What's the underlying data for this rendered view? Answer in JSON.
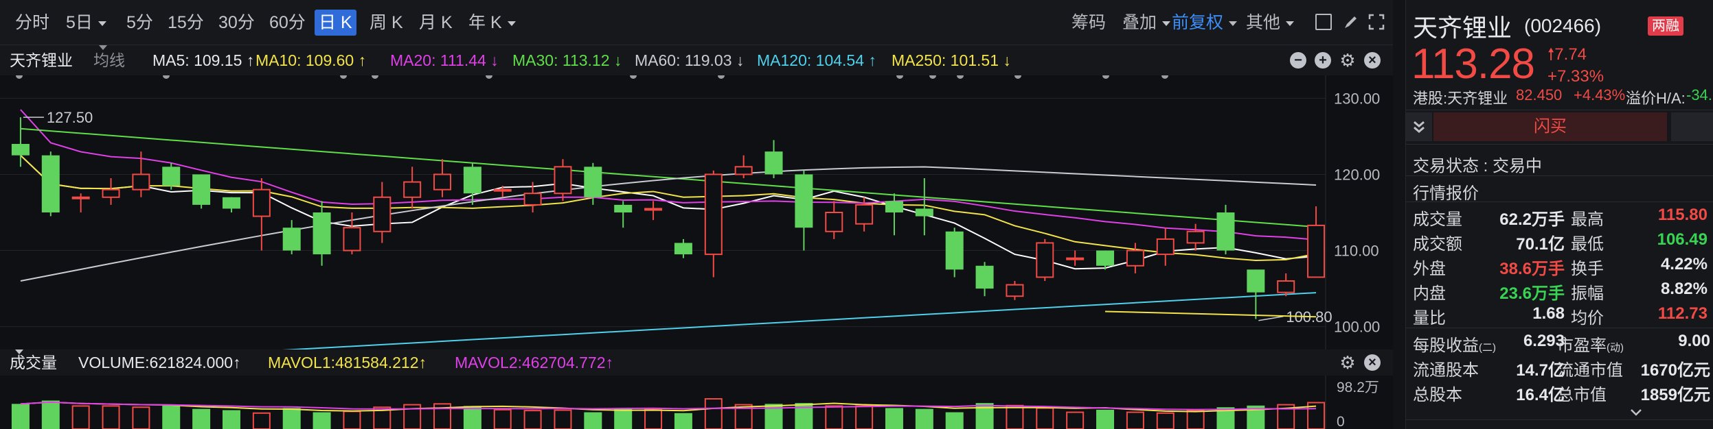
{
  "toolbar": {
    "periods": [
      "分时",
      "5日",
      "5分",
      "15分",
      "30分",
      "60分",
      "日 K",
      "周 K",
      "月 K",
      "年 K"
    ],
    "active_period": "日 K",
    "tools": {
      "chips": "筹码",
      "overlay": "叠加",
      "adjust": "前复权",
      "other": "其他"
    }
  },
  "ma_row": {
    "stock_name": "天齐锂业",
    "ma_type": "均线",
    "ma5": "MA5: 109.15 ↑",
    "ma10": "MA10: 109.60 ↑",
    "ma20": "MA20: 111.44 ↓",
    "ma30": "MA30: 113.12 ↓",
    "ma60": "MA60: 119.03 ↓",
    "ma120": "MA120: 104.54 ↑",
    "ma250": "MA250: 101.51 ↓"
  },
  "chart": {
    "y_ticks": [
      "130.00",
      "120.00",
      "110.00",
      "100.00"
    ],
    "high_marker": "127.50",
    "low_marker": "100.80"
  },
  "volume": {
    "title": "成交量",
    "volume": "VOLUME:621824.000↑",
    "mavol1": "MAVOL1:481584.212↑",
    "mavol2": "MAVOL2:462704.772↑",
    "y_top": "98.2万",
    "y_zero": "0"
  },
  "quote": {
    "name": "天齐锂业",
    "code": "(002466)",
    "badge": "两融",
    "price": "113.28",
    "change": "7.74",
    "change_pct": "+7.33%",
    "hk_label": "港股:天齐锂业",
    "hk_price": "82.450",
    "hk_pct": "+4.43%",
    "premium_label": "溢价H/A:",
    "premium_value": "-34.",
    "flash_button": "闪买",
    "trade_status": "交易状态 : 交易中",
    "section_title": "行情报价",
    "stats": [
      {
        "l1": "成交量",
        "v1": "62.2万手",
        "l2": "最高",
        "v2": "115.80"
      },
      {
        "l1": "成交额",
        "v1": "70.1亿",
        "l2": "最低",
        "v2": "106.49"
      },
      {
        "l1": "外盘",
        "v1": "38.6万手",
        "l2": "换手",
        "v2": "4.22%"
      },
      {
        "l1": "内盘",
        "v1": "23.6万手",
        "l2": "振幅",
        "v2": "8.82%"
      },
      {
        "l1": "量比",
        "v1": "1.68",
        "l2": "均价",
        "v2": "112.73"
      }
    ],
    "fund": [
      {
        "l1": "每股收益",
        "s1": "(二)",
        "v1": "6.293",
        "l2": "市盈率",
        "s2": "(动)",
        "v2": "9.00"
      },
      {
        "l1": "流通股本",
        "s1": "",
        "v1": "14.7亿",
        "l2": "流通市值",
        "s2": "",
        "v2": "1670亿元"
      },
      {
        "l1": "总股本",
        "s1": "",
        "v1": "16.4亿",
        "l2": "总市值",
        "s2": "",
        "v2": "1859亿元"
      }
    ]
  },
  "chart_data": {
    "type": "candlestick",
    "y_range": [
      97,
      133
    ],
    "candles": [
      [
        124,
        122.5,
        127.5,
        121.0
      ],
      [
        122.5,
        115.0,
        123.0,
        114.5
      ],
      [
        117.0,
        117.0,
        117.5,
        115.0
      ],
      [
        117.0,
        118.0,
        119.5,
        116.0
      ],
      [
        118.0,
        120.0,
        123.0,
        117.0
      ],
      [
        121.0,
        118.5,
        121.5,
        118.0
      ],
      [
        120.0,
        116.0,
        120.0,
        115.5
      ],
      [
        117.0,
        115.5,
        117.0,
        115.0
      ],
      [
        114.5,
        118.0,
        119.5,
        110.0
      ],
      [
        113.0,
        110.0,
        114.0,
        109.5
      ],
      [
        115.0,
        109.5,
        116.5,
        108.0
      ],
      [
        110.0,
        113.0,
        115.0,
        109.5
      ],
      [
        112.5,
        117.0,
        119.0,
        111.0
      ],
      [
        117.0,
        119.0,
        121.0,
        115.5
      ],
      [
        118.0,
        120.0,
        122.0,
        117.0
      ],
      [
        121.0,
        117.5,
        121.5,
        116.0
      ],
      [
        118.0,
        118.0,
        118.5,
        117.0
      ],
      [
        116.0,
        117.5,
        119.0,
        115.0
      ],
      [
        117.5,
        121.0,
        122.0,
        116.5
      ],
      [
        121.0,
        117.0,
        121.5,
        116.0
      ],
      [
        116.0,
        115.0,
        116.5,
        113.0
      ],
      [
        115.5,
        115.5,
        116.5,
        114.0
      ],
      [
        111.0,
        109.5,
        111.5,
        109.0
      ],
      [
        109.5,
        120.0,
        120.5,
        106.5
      ],
      [
        120.0,
        121.0,
        122.5,
        119.5
      ],
      [
        123.0,
        120.0,
        124.5,
        119.5
      ],
      [
        120.0,
        113.0,
        120.5,
        110.0
      ],
      [
        112.5,
        115.0,
        116.5,
        111.5
      ],
      [
        113.5,
        116.0,
        117.0,
        112.5
      ],
      [
        116.5,
        115.0,
        117.5,
        112.0
      ],
      [
        115.5,
        114.5,
        119.5,
        112.0
      ],
      [
        112.5,
        107.5,
        113.0,
        106.5
      ],
      [
        108.0,
        105.0,
        108.5,
        104.0
      ],
      [
        104.0,
        105.5,
        106.0,
        103.5
      ],
      [
        106.5,
        111.0,
        111.5,
        106.0
      ],
      [
        109.0,
        109.0,
        110.0,
        108.0
      ],
      [
        110.0,
        108.0,
        110.0,
        107.5
      ],
      [
        108.0,
        110.0,
        111.0,
        107.0
      ],
      [
        109.5,
        111.5,
        113.0,
        108.0
      ],
      [
        111.0,
        112.5,
        113.5,
        110.0
      ],
      [
        115.0,
        110.0,
        116.0,
        109.5
      ],
      [
        107.5,
        104.5,
        107.5,
        101.0
      ],
      [
        104.5,
        106.0,
        107.0,
        104.0
      ],
      [
        106.5,
        113.3,
        115.8,
        106.5
      ]
    ],
    "volume_top": 98.2,
    "volumes": [
      60,
      68,
      55,
      55,
      52,
      56,
      48,
      45,
      38,
      50,
      40,
      42,
      52,
      58,
      60,
      55,
      46,
      44,
      45,
      40,
      48,
      48,
      38,
      72,
      58,
      60,
      62,
      55,
      55,
      50,
      48,
      40,
      62,
      56,
      50,
      40,
      46,
      40,
      38,
      44,
      52,
      56,
      58,
      63
    ]
  }
}
